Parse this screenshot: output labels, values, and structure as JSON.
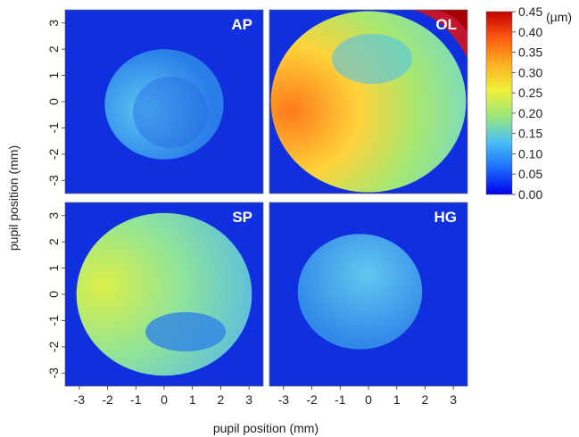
{
  "chart_data": {
    "type": "heatmap",
    "xlabel": "pupil position (mm)",
    "ylabel": "pupil position (mm)",
    "xlim": [
      -3.5,
      3.5
    ],
    "ylim": [
      -3.5,
      3.5
    ],
    "x_ticks": [
      "-3",
      "-2",
      "-1",
      "0",
      "1",
      "2",
      "3"
    ],
    "y_ticks": [
      "3",
      "2",
      "1",
      "0",
      "-1",
      "-2",
      "-3"
    ],
    "colorbar": {
      "unit": "(µm)",
      "range": [
        0.0,
        0.45
      ],
      "ticks": [
        "0.45",
        "0.40",
        "0.35",
        "0.30",
        "0.25",
        "0.20",
        "0.15",
        "0.10",
        "0.05",
        "0.00"
      ],
      "colors": [
        "#0000e8",
        "#1a6cff",
        "#49bff5",
        "#9be87a",
        "#f0f03c",
        "#ffb020",
        "#ff5a10",
        "#c00000"
      ]
    },
    "background_color": "#1030e0",
    "panels": [
      {
        "label": "AP",
        "pupil_center": [
          0.0,
          -0.1
        ],
        "pupil_radius_mm": 2.1,
        "value_range": [
          0.05,
          0.15
        ],
        "mean_value": 0.09
      },
      {
        "label": "OL",
        "pupil_center": [
          0.0,
          0.0
        ],
        "pupil_radius_mm": 3.45,
        "value_range": [
          0.12,
          0.45
        ],
        "mean_value": 0.22
      },
      {
        "label": "SP",
        "pupil_center": [
          0.0,
          0.0
        ],
        "pupil_radius_mm": 3.1,
        "value_range": [
          0.07,
          0.3
        ],
        "mean_value": 0.18
      },
      {
        "label": "HG",
        "pupil_center": [
          -0.3,
          0.1
        ],
        "pupil_radius_mm": 2.2,
        "value_range": [
          0.06,
          0.13
        ],
        "mean_value": 0.09
      }
    ]
  }
}
